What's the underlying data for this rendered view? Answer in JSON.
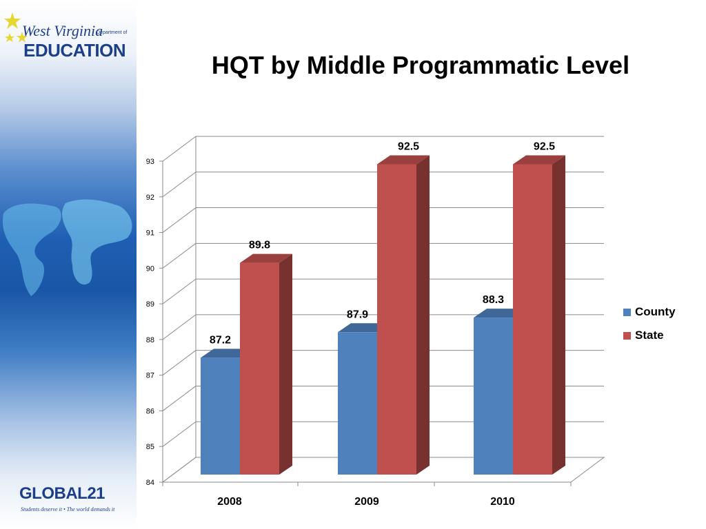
{
  "slide": {
    "title": "HQT by Middle Programmatic Level"
  },
  "branding": {
    "wv_logo_script": "West Virginia",
    "wv_logo_dept": "Department of",
    "wv_logo_main": "EDUCATION",
    "global21_logo": "GLOBAL21",
    "global21_tagline": "Students deserve it • The world demands it"
  },
  "chart_data": {
    "type": "bar",
    "title": "HQT by Middle Programmatic Level",
    "categories": [
      "2008",
      "2009",
      "2010"
    ],
    "series": [
      {
        "name": "County",
        "values": [
          87.2,
          87.9,
          88.3
        ],
        "color": "#4f81bd"
      },
      {
        "name": "State",
        "values": [
          89.8,
          92.5,
          92.5
        ],
        "color": "#c0504d"
      }
    ],
    "ylim": [
      84,
      93
    ],
    "y_ticks": [
      "84",
      "85",
      "86",
      "87",
      "88",
      "89",
      "90",
      "91",
      "92",
      "93"
    ],
    "grid": true,
    "legend": "right",
    "three_d": true,
    "data_labels": [
      "87.2",
      "89.8",
      "87.9",
      "92.5",
      "88.3",
      "92.5"
    ]
  }
}
